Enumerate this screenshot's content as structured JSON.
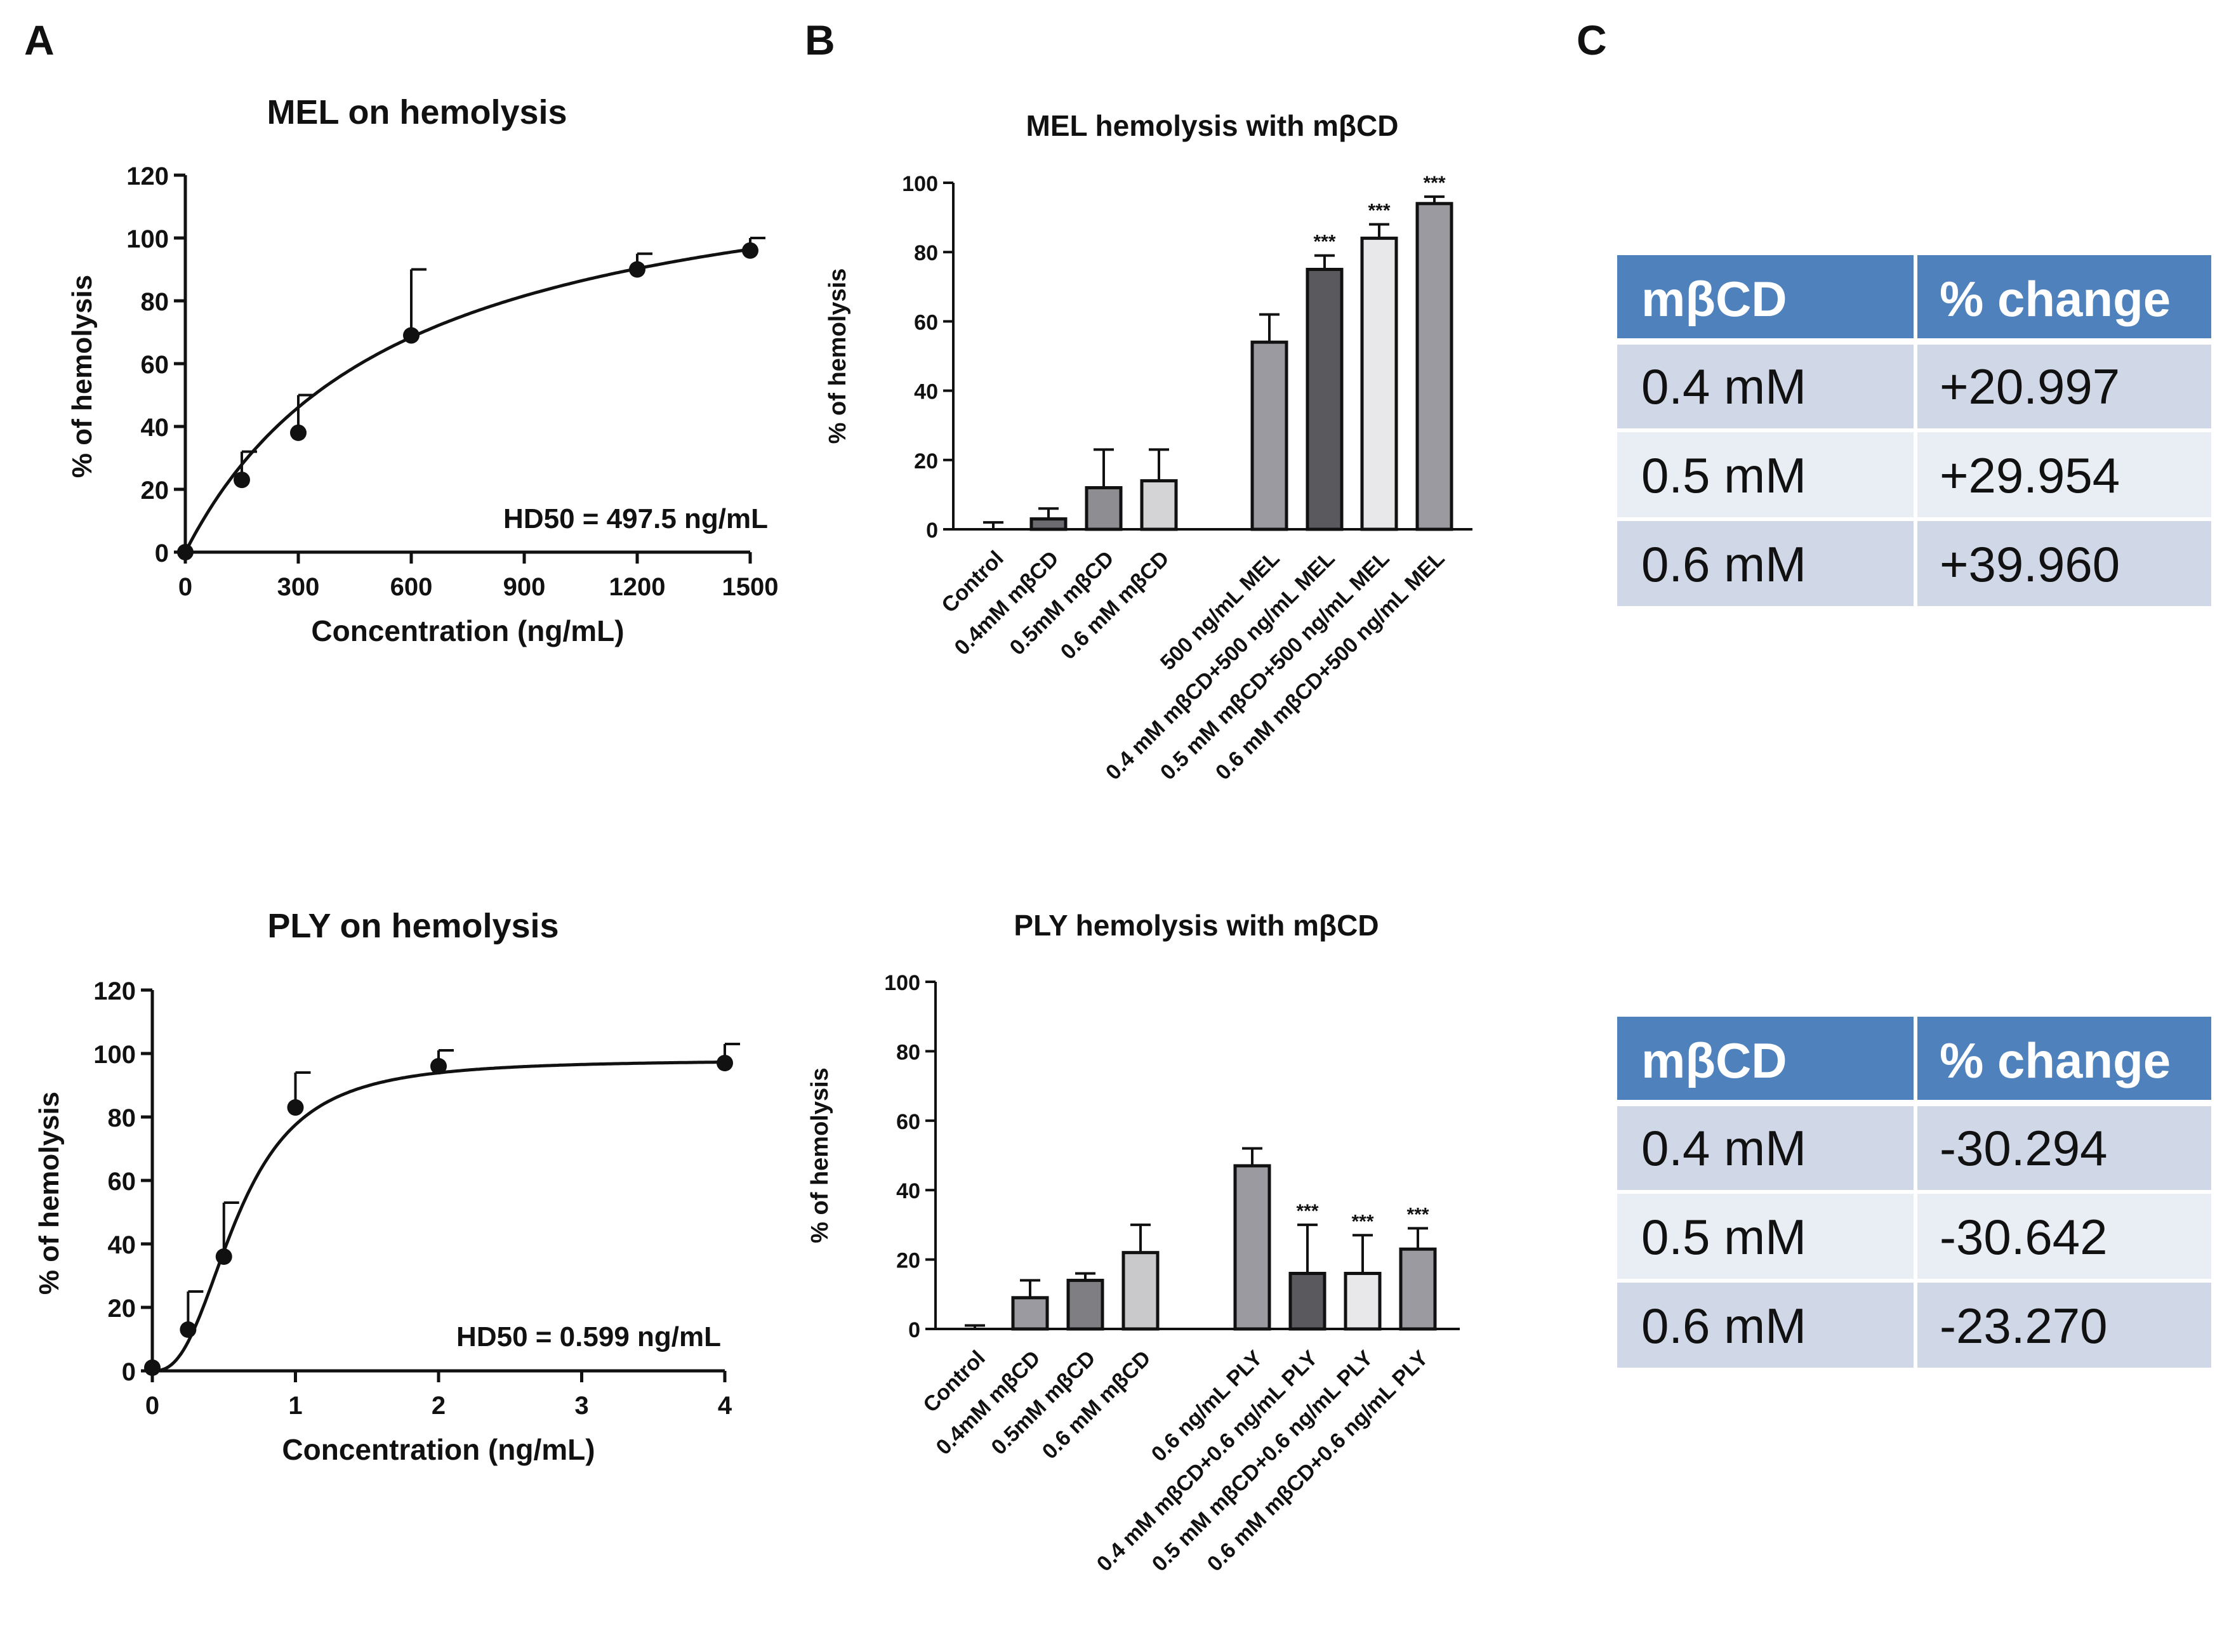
{
  "panel_labels": {
    "a": "A",
    "b": "B",
    "c": "C"
  },
  "chart_data": [
    {
      "id": "A1",
      "type": "scatter",
      "title": "MEL on hemolysis",
      "xlabel": "Concentration (ng/mL)",
      "ylabel": "% of hemolysis",
      "xlim": [
        0,
        1500
      ],
      "ylim": [
        0,
        120
      ],
      "xticks": [
        0,
        300,
        600,
        900,
        1200,
        1500
      ],
      "yticks": [
        0,
        20,
        40,
        60,
        80,
        100,
        120
      ],
      "x": [
        0,
        150,
        300,
        600,
        1200,
        1500
      ],
      "y": [
        0,
        23,
        38,
        69,
        90,
        96
      ],
      "error": [
        0,
        9,
        12,
        21,
        5,
        4
      ],
      "fit": "hyperbolic",
      "annotation": "HD50 = 497.5 ng/mL"
    },
    {
      "id": "A2",
      "type": "scatter",
      "title": "PLY on hemolysis",
      "xlabel": "Concentration (ng/mL)",
      "ylabel": "% of hemolysis",
      "xlim": [
        0,
        4
      ],
      "ylim": [
        0,
        120
      ],
      "xticks": [
        0,
        1,
        2,
        3,
        4
      ],
      "yticks": [
        0,
        20,
        40,
        60,
        80,
        100,
        120
      ],
      "x": [
        0,
        0.25,
        0.5,
        1,
        2,
        4
      ],
      "y": [
        1,
        13,
        36,
        83,
        96,
        97
      ],
      "error": [
        0,
        12,
        17,
        11,
        5,
        6
      ],
      "fit": "sigmoid",
      "annotation": "HD50 = 0.599 ng/mL"
    },
    {
      "id": "B1",
      "type": "bar",
      "title": "MEL hemolysis with mβCD",
      "ylabel": "% of hemolysis",
      "ylim": [
        0,
        100
      ],
      "yticks": [
        0,
        20,
        40,
        60,
        80,
        100
      ],
      "categories": [
        "Control",
        "0.4mM mβCD",
        "0.5mM mβCD",
        "0.6 mM mβCD",
        "500 ng/mL MEL",
        "0.4 mM mβCD+500 ng/mL MEL",
        "0.5 mM mβCD+500 ng/mL MEL",
        "0.6 mM mβCD+500 ng/mL MEL"
      ],
      "values": [
        0,
        3,
        12,
        14,
        54,
        75,
        84,
        94
      ],
      "error": [
        2,
        3,
        11,
        9,
        8,
        4,
        4,
        2
      ],
      "fills": [
        "#9a9aa0",
        "#6b6b70",
        "#8d8d92",
        "#d4d4d6",
        "#9a9aa0",
        "#5a5a5e",
        "#e8e8ea",
        "#9a9aa0"
      ],
      "significance": [
        "",
        "",
        "",
        "",
        "",
        "***",
        "***",
        "***"
      ]
    },
    {
      "id": "B2",
      "type": "bar",
      "title": "PLY hemolysis with mβCD",
      "ylabel": "% of hemolysis",
      "ylim": [
        0,
        100
      ],
      "yticks": [
        0,
        20,
        40,
        60,
        80,
        100
      ],
      "categories": [
        "Control",
        "0.4mM mβCD",
        "0.5mM mβCD",
        "0.6 mM mβCD",
        "0.6 ng/mL PLY",
        "0.4 mM mβCD+0.6 ng/mL PLY",
        "0.5 mM mβCD+0.6 ng/mL PLY",
        "0.6 mM mβCD+0.6 ng/mL PLY"
      ],
      "values": [
        0,
        9,
        14,
        22,
        47,
        16,
        16,
        23
      ],
      "error": [
        1,
        5,
        2,
        8,
        5,
        14,
        11,
        6
      ],
      "fills": [
        "#9a9aa0",
        "#9a9aa0",
        "#7e7e83",
        "#c9c9cc",
        "#9a9aa0",
        "#5a5a5e",
        "#e8e8ea",
        "#9a9aa0"
      ],
      "significance": [
        "",
        "",
        "",
        "",
        "",
        "***",
        "***",
        "***"
      ]
    },
    {
      "id": "C1",
      "type": "table",
      "columns": [
        "mβCD",
        "% change"
      ],
      "rows": [
        [
          "0.4 mM",
          "+20.997"
        ],
        [
          "0.5 mM",
          "+29.954"
        ],
        [
          "0.6 mM",
          "+39.960"
        ]
      ]
    },
    {
      "id": "C2",
      "type": "table",
      "columns": [
        "mβCD",
        "% change"
      ],
      "rows": [
        [
          "0.4 mM",
          "-30.294"
        ],
        [
          "0.5 mM",
          "-30.642"
        ],
        [
          "0.6 mM",
          "-23.270"
        ]
      ]
    }
  ],
  "colors": {
    "table_header": "#4f81bd",
    "table_row_dark": "#d0d8e8",
    "table_row_light": "#e9edf4",
    "axis": "#111111"
  }
}
